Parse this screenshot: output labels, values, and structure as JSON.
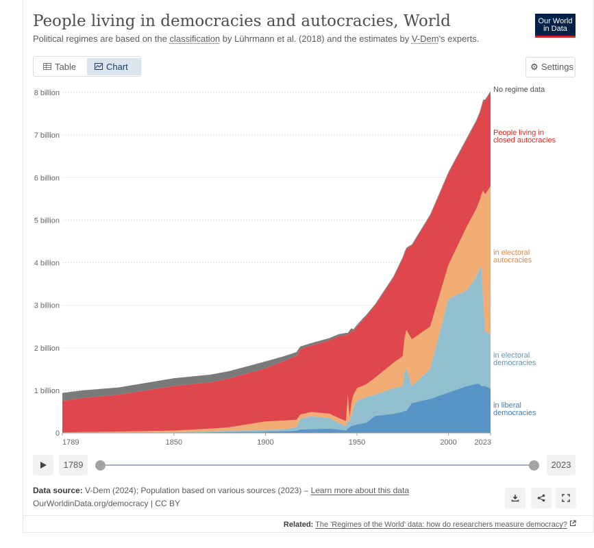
{
  "header": {
    "title": "People living in democracies and autocracies, World",
    "subtitle_part1": "Political regimes are based on the ",
    "subtitle_link1": "classification",
    "subtitle_part2": " by Lührmann et al. (2018) and the estimates by ",
    "subtitle_link2": "V-Dem",
    "subtitle_part3": "'s experts."
  },
  "logo": {
    "line1": "Our World",
    "line2": "in Data",
    "colors": {
      "bg": "#002147",
      "accent": "#ce261e"
    }
  },
  "tabs": [
    {
      "label": "Table",
      "icon": "table-icon",
      "active": false
    },
    {
      "label": "Chart",
      "icon": "chart-icon",
      "active": true
    }
  ],
  "settings": {
    "label": "Settings",
    "icon": "gear-icon"
  },
  "timeline": {
    "start_label": "1789",
    "end_label": "2023",
    "start_value": 1789,
    "end_value": 2023
  },
  "footer": {
    "source_label": "Data source:",
    "source_text": " V-Dem (2024); Population based on various sources (2023) – ",
    "source_link": "Learn more about this data",
    "citation": "OurWorldinData.org/democracy | CC BY",
    "related_label": "Related:",
    "related_link": "The 'Regimes of the World' data: how do researchers measure democracy?"
  },
  "chart_data": {
    "type": "area",
    "stacked": true,
    "xlim": [
      1789,
      2023
    ],
    "ylim": [
      0,
      8000000000
    ],
    "x_ticks": [
      "1789",
      "1850",
      "1900",
      "1950",
      "2000",
      "2023"
    ],
    "y_ticks": [
      "0",
      "1 billion",
      "2 billion",
      "3 billion",
      "4 billion",
      "5 billion",
      "6 billion",
      "7 billion",
      "8 billion"
    ],
    "y_tick_values": [
      0,
      1000000000,
      2000000000,
      3000000000,
      4000000000,
      5000000000,
      6000000000,
      7000000000,
      8000000000
    ],
    "grid": "horizontal-dotted",
    "legend": "right-inline",
    "x": [
      1789,
      1800,
      1820,
      1850,
      1870,
      1880,
      1900,
      1910,
      1917,
      1919,
      1925,
      1935,
      1940,
      1944,
      1945,
      1946,
      1947,
      1948,
      1950,
      1955,
      1960,
      1970,
      1975,
      1976,
      1977,
      1980,
      1990,
      2000,
      2010,
      2015,
      2017,
      2018,
      2019,
      2020,
      2023
    ],
    "series": [
      {
        "name": "in liberal democracies",
        "color": "#5994c6",
        "values": [
          0,
          0,
          0,
          5000000,
          15000000,
          20000000,
          30000000,
          40000000,
          50000000,
          80000000,
          90000000,
          100000000,
          80000000,
          60000000,
          100000000,
          140000000,
          160000000,
          180000000,
          200000000,
          240000000,
          400000000,
          450000000,
          500000000,
          520000000,
          520000000,
          700000000,
          800000000,
          950000000,
          1100000000,
          1150000000,
          1150000000,
          1100000000,
          1100000000,
          1100000000,
          1050000000
        ]
      },
      {
        "name": "in electoral democracies",
        "color": "#91bfcf",
        "values": [
          0,
          0,
          0,
          10000000,
          25000000,
          30000000,
          40000000,
          50000000,
          80000000,
          250000000,
          300000000,
          250000000,
          150000000,
          100000000,
          200000000,
          120000000,
          250000000,
          400000000,
          550000000,
          600000000,
          500000000,
          600000000,
          600000000,
          900000000,
          1000000000,
          400000000,
          700000000,
          2200000000,
          2250000000,
          2500000000,
          2700000000,
          2800000000,
          2000000000,
          1300000000,
          1250000000
        ]
      },
      {
        "name": "in electoral autocracies",
        "color": "#f1ad73",
        "values": [
          10000000,
          20000000,
          30000000,
          40000000,
          60000000,
          80000000,
          200000000,
          200000000,
          180000000,
          100000000,
          100000000,
          100000000,
          120000000,
          120000000,
          600000000,
          100000000,
          300000000,
          300000000,
          300000000,
          300000000,
          400000000,
          600000000,
          700000000,
          800000000,
          900000000,
          1100000000,
          1000000000,
          800000000,
          1500000000,
          1600000000,
          1600000000,
          1700000000,
          2600000000,
          3200000000,
          3500000000
        ]
      },
      {
        "name": "People living in closed autocracies",
        "color": "#e0474c",
        "values": [
          740000000,
          800000000,
          870000000,
          1050000000,
          1090000000,
          1150000000,
          1250000000,
          1400000000,
          1500000000,
          1540000000,
          1560000000,
          1730000000,
          1920000000,
          2020000000,
          1400000000,
          2000000000,
          1700000000,
          1500000000,
          1450000000,
          1600000000,
          1700000000,
          2000000000,
          2300000000,
          2000000000,
          1900000000,
          2200000000,
          2600000000,
          2150000000,
          2050000000,
          2050000000,
          2050000000,
          2050000000,
          2100000000,
          2200000000,
          2200000000
        ]
      },
      {
        "name": "No regime data",
        "color": "#7a7a7a",
        "values": [
          190000000,
          180000000,
          170000000,
          180000000,
          180000000,
          170000000,
          160000000,
          110000000,
          90000000,
          60000000,
          60000000,
          50000000,
          50000000,
          50000000,
          50000000,
          50000000,
          50000000,
          50000000,
          40000000,
          30000000,
          30000000,
          30000000,
          30000000,
          30000000,
          30000000,
          30000000,
          30000000,
          30000000,
          30000000,
          30000000,
          30000000,
          30000000,
          30000000,
          30000000,
          30000000
        ]
      }
    ],
    "legend_labels": [
      {
        "series": "No regime data",
        "lines": [
          "No regime data"
        ],
        "color": "#4e4e4e"
      },
      {
        "series": "People living in closed autocracies",
        "lines": [
          "People living in",
          "closed autocracies"
        ],
        "color": "#d32c25"
      },
      {
        "series": "in electoral autocracies",
        "lines": [
          "in electoral",
          "autocracies"
        ],
        "color": "#e4883e"
      },
      {
        "series": "in electoral democracies",
        "lines": [
          "in electoral",
          "democracies"
        ],
        "color": "#5c96b2"
      },
      {
        "series": "in liberal democracies",
        "lines": [
          "in liberal",
          "democracies"
        ],
        "color": "#3e7db6"
      }
    ]
  }
}
